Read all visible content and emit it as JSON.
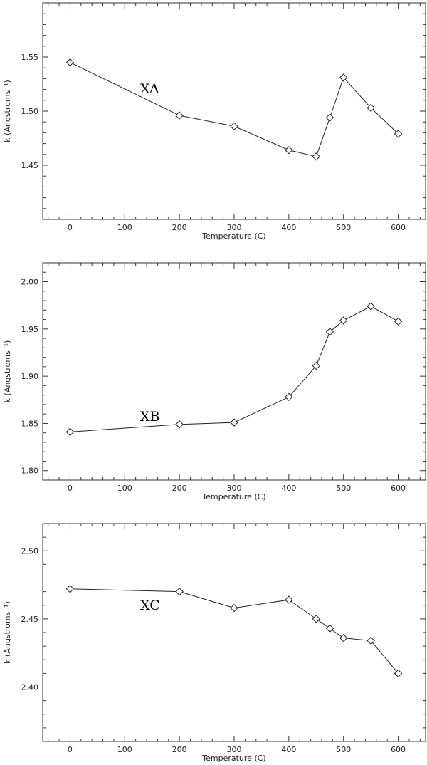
{
  "chart_data": [
    {
      "type": "line",
      "panel_label": "XA",
      "xlabel": "Temperature (C)",
      "ylabel": "k (Angstroms⁻¹)",
      "xlim": [
        -50,
        650
      ],
      "ylim": [
        1.4,
        1.6
      ],
      "xticks": [
        0,
        100,
        200,
        300,
        400,
        500,
        600
      ],
      "yticks": [
        1.45,
        1.5,
        1.55
      ],
      "ytick_format": 2,
      "marker": "diamond",
      "grid": false,
      "series": [
        {
          "x": [
            0,
            200,
            300,
            400,
            450,
            475,
            500,
            550,
            600
          ],
          "y": [
            1.545,
            1.496,
            1.486,
            1.464,
            1.458,
            1.494,
            1.531,
            1.503,
            1.479
          ]
        }
      ]
    },
    {
      "type": "line",
      "panel_label": "XB",
      "xlabel": "Temperature (C)",
      "ylabel": "k (Angstroms⁻¹)",
      "xlim": [
        -50,
        650
      ],
      "ylim": [
        1.79,
        2.02
      ],
      "xticks": [
        0,
        100,
        200,
        300,
        400,
        500,
        600
      ],
      "yticks": [
        1.8,
        1.85,
        1.9,
        1.95,
        2.0
      ],
      "ytick_format": 2,
      "marker": "diamond",
      "grid": false,
      "series": [
        {
          "x": [
            0,
            200,
            300,
            400,
            450,
            475,
            500,
            550,
            600
          ],
          "y": [
            1.841,
            1.849,
            1.851,
            1.878,
            1.911,
            1.947,
            1.959,
            1.974,
            1.958
          ]
        }
      ]
    },
    {
      "type": "line",
      "panel_label": "XC",
      "xlabel": "Temperature (C)",
      "ylabel": "k (Angstroms⁻¹)",
      "xlim": [
        -50,
        650
      ],
      "ylim": [
        2.36,
        2.52
      ],
      "xticks": [
        0,
        100,
        200,
        300,
        400,
        500,
        600
      ],
      "yticks": [
        2.4,
        2.45,
        2.5
      ],
      "ytick_format": 2,
      "marker": "diamond",
      "grid": false,
      "series": [
        {
          "x": [
            0,
            200,
            300,
            400,
            450,
            475,
            500,
            550,
            600
          ],
          "y": [
            2.472,
            2.47,
            2.458,
            2.464,
            2.45,
            2.443,
            2.436,
            2.434,
            2.41
          ]
        }
      ]
    }
  ]
}
